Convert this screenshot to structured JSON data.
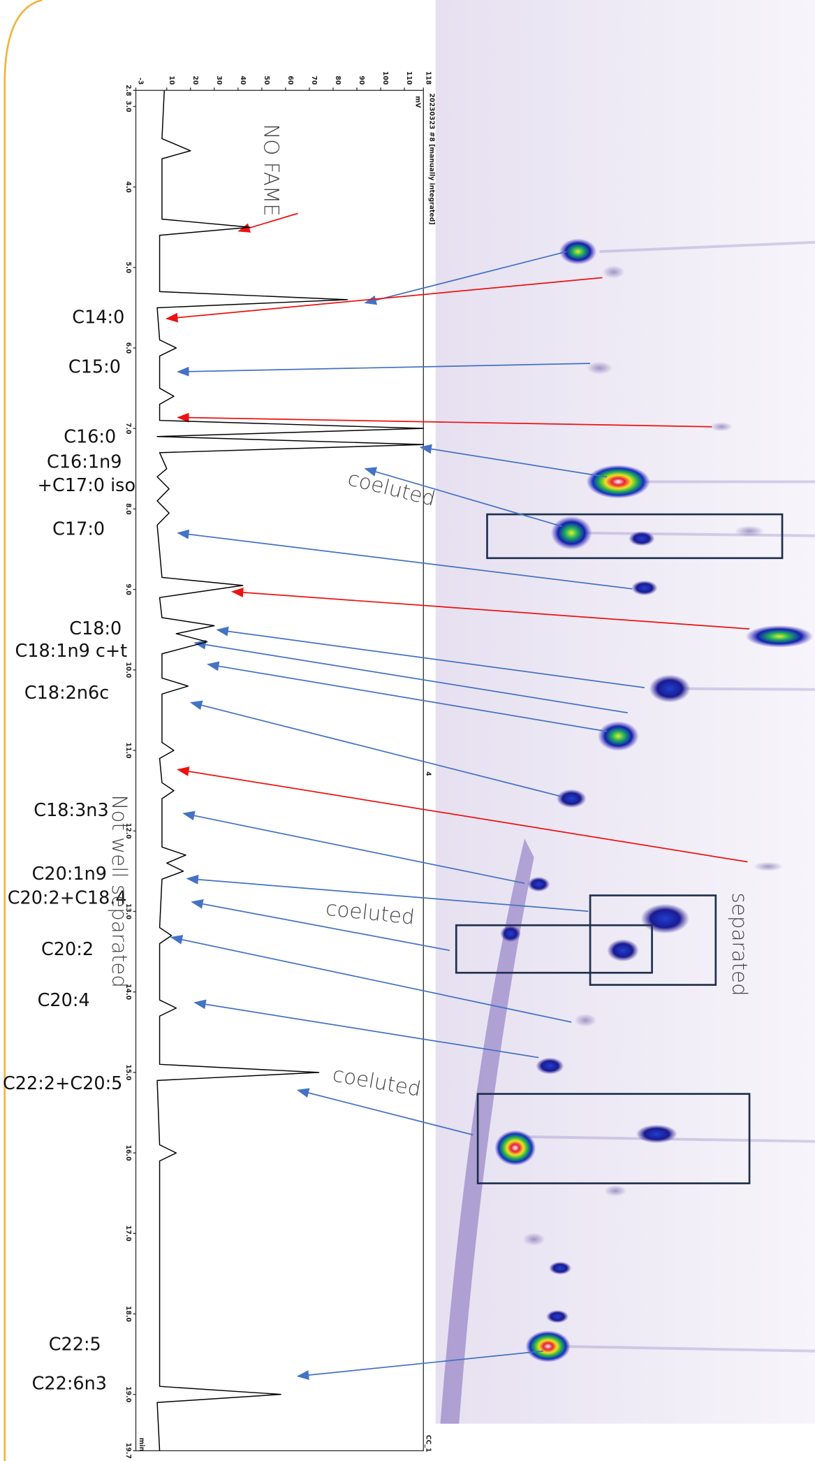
{
  "chart_data": {
    "type": "line",
    "title": "20230323 #8 [manually integrated]",
    "x_label": "min",
    "y_label": "mV",
    "color": "#000000",
    "x": [
      2.8,
      3.4,
      3.55,
      3.65,
      4.4,
      4.5,
      4.6,
      5.3,
      5.4,
      5.5,
      5.9,
      6.0,
      6.1,
      6.5,
      6.6,
      6.7,
      6.9,
      7.0,
      7.1,
      7.2,
      7.3,
      7.5,
      7.6,
      7.75,
      7.9,
      8.05,
      8.2,
      8.85,
      8.95,
      9.1,
      9.35,
      9.45,
      9.55,
      9.65,
      9.8,
      10.1,
      10.2,
      10.3,
      10.9,
      11.0,
      11.1,
      11.4,
      11.5,
      11.6,
      12.2,
      12.3,
      12.4,
      12.5,
      12.6,
      13.2,
      13.3,
      13.4,
      14.1,
      14.2,
      14.3,
      14.9,
      15.0,
      15.1,
      15.9,
      16.0,
      16.1,
      18.9,
      19.0,
      19.1,
      19.7
    ],
    "values": [
      9,
      8,
      20,
      8,
      8,
      45,
      7,
      7,
      86,
      6,
      7,
      14,
      7,
      7,
      13,
      7,
      7,
      118,
      6,
      118,
      7,
      10,
      6,
      11,
      6,
      11,
      6,
      8,
      42,
      7,
      8,
      30,
      14,
      27,
      8,
      8,
      19,
      8,
      8,
      13,
      7,
      8,
      13,
      8,
      8,
      18,
      10,
      17,
      8,
      7,
      12,
      7,
      7,
      14,
      7,
      7,
      74,
      6,
      7,
      14,
      7,
      7,
      58,
      6,
      7
    ],
    "xlim": [
      2.8,
      19.7
    ],
    "xticks": [
      2.8,
      {
        "value": 3,
        "label": "3.0"
      },
      {
        "value": 4,
        "label": "4.0"
      },
      {
        "value": 5,
        "label": "5.0"
      },
      {
        "value": 6,
        "label": "6.0"
      },
      {
        "value": 7,
        "label": "7.0"
      },
      {
        "value": 8,
        "label": "8.0"
      },
      {
        "value": 9,
        "label": "9.0"
      },
      {
        "value": 10,
        "label": "10.0"
      },
      {
        "value": 11,
        "label": "11.0"
      },
      {
        "value": 12,
        "label": "12.0"
      },
      {
        "value": 13,
        "label": "13.0"
      },
      {
        "value": 14,
        "label": "14.0"
      },
      {
        "value": 15,
        "label": "15.0"
      },
      {
        "value": 16,
        "label": "16.0"
      },
      {
        "value": 17,
        "label": "17.0"
      },
      {
        "value": 18,
        "label": "18.0"
      },
      {
        "value": 19,
        "label": "19.0"
      },
      19.7
    ],
    "ylim": [
      -3,
      118
    ],
    "yticks": [
      -3,
      10,
      20,
      30,
      40,
      50,
      60,
      70,
      80,
      90,
      100,
      110,
      118
    ],
    "side_labels": [
      "4",
      "CC_1"
    ]
  },
  "peak_labels": [
    "C14:0",
    "C15:0",
    "C16:0",
    "C16:1n9",
    "+C17:0 iso",
    "C17:0",
    "C18:0",
    "C18:1n9 c+t",
    "C18:2n6c",
    "C18:3n3",
    "C20:1n9",
    "C20:2+C18.4",
    "C20:2",
    "C20:4",
    "C22:2+C20:5",
    "C22:5",
    "C22:6n3"
  ],
  "annotations": [
    "NO FAME",
    "coeluted",
    "coeluted",
    "coeluted",
    "separated",
    "Not well separated"
  ]
}
